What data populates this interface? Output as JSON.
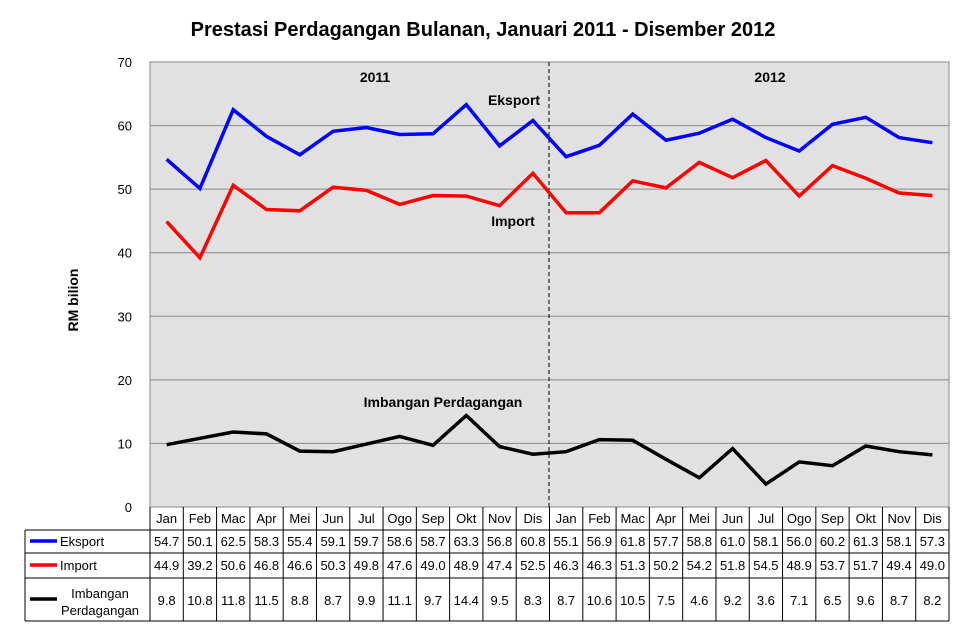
{
  "chart_data": {
    "type": "line",
    "title": "Prestasi Perdagangan Bulanan, Januari 2011 - Disember 2012",
    "ylabel": "RM bilion",
    "xlabel": "",
    "ylim": [
      0,
      70
    ],
    "yticks": [
      0,
      10,
      20,
      30,
      40,
      50,
      60,
      70
    ],
    "grid": true,
    "categories": [
      "Jan",
      "Feb",
      "Mac",
      "Apr",
      "Mei",
      "Jun",
      "Jul",
      "Ogo",
      "Sep",
      "Okt",
      "Nov",
      "Dis",
      "Jan",
      "Feb",
      "Mac",
      "Apr",
      "Mei",
      "Jun",
      "Jul",
      "Ogo",
      "Sep",
      "Okt",
      "Nov",
      "Dis"
    ],
    "year_labels": [
      "2011",
      "2012"
    ],
    "series": [
      {
        "name": "Eksport",
        "color": "#0000ff",
        "values": [
          54.7,
          50.1,
          62.5,
          58.3,
          55.4,
          59.1,
          59.7,
          58.6,
          58.7,
          63.3,
          56.8,
          60.8,
          55.1,
          56.9,
          61.8,
          57.7,
          58.8,
          61.0,
          58.1,
          56.0,
          60.2,
          61.3,
          58.1,
          57.3
        ]
      },
      {
        "name": "Import",
        "color": "#ff0000",
        "values": [
          44.9,
          39.2,
          50.6,
          46.8,
          46.6,
          50.3,
          49.8,
          47.6,
          49.0,
          48.9,
          47.4,
          52.5,
          46.3,
          46.3,
          51.3,
          50.2,
          54.2,
          51.8,
          54.5,
          48.9,
          53.7,
          51.7,
          49.4,
          49.0
        ]
      },
      {
        "name": "Imbangan Perdagangan",
        "color": "#000000",
        "values": [
          9.8,
          10.8,
          11.8,
          11.5,
          8.8,
          8.7,
          9.9,
          11.1,
          9.7,
          14.4,
          9.5,
          8.3,
          8.7,
          10.6,
          10.5,
          7.5,
          4.6,
          9.2,
          3.6,
          7.1,
          6.5,
          9.6,
          8.7,
          8.2
        ]
      }
    ],
    "table_labels": [
      "Eksport",
      "Import",
      "Imbangan Perdagangan"
    ],
    "annotations": [
      "Eksport",
      "Import",
      "Imbangan Perdagangan"
    ],
    "legend": "data-table-below"
  }
}
